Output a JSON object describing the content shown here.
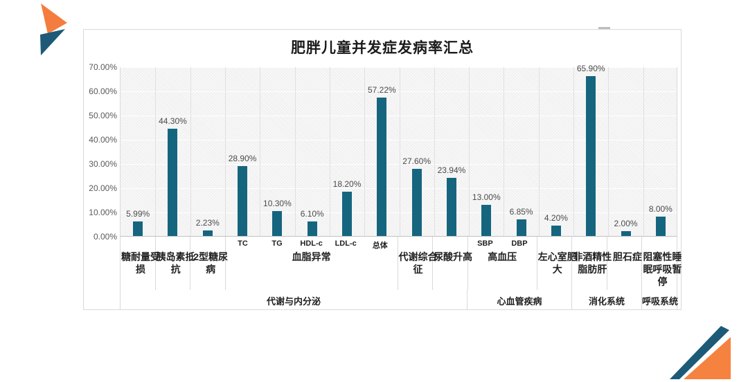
{
  "decorations": {
    "logo": {
      "orange": "#f57c3f",
      "teal": "#1d5a78"
    },
    "corner": {
      "orange": "#f5823f",
      "teal": "#1d5a78"
    },
    "frame_dash_color": "#bdbdbd"
  },
  "chart": {
    "bar_color": "#16657f",
    "frame_border": "#d9d9d9",
    "plot_bg": "#f3f3f3",
    "value_label_color": "#4b4b4b",
    "ytick_color": "#595959"
  },
  "chart_data": {
    "type": "bar",
    "title": "肥胖儿童并发症发病率汇总",
    "xlabel": "",
    "ylabel": "",
    "ylim": [
      0,
      70
    ],
    "grid": true,
    "legend": "none",
    "y_ticks": [
      "0.00%",
      "10.00%",
      "20.00%",
      "30.00%",
      "40.00%",
      "50.00%",
      "60.00%",
      "70.00%"
    ],
    "bars": [
      {
        "category": "糖耐量受损",
        "tick": "",
        "value": 5.99,
        "label": "5.99%"
      },
      {
        "category": "胰岛素抵抗",
        "tick": "",
        "value": 44.3,
        "label": "44.30%"
      },
      {
        "category": "2型糖尿病",
        "tick": "",
        "value": 2.23,
        "label": "2.23%"
      },
      {
        "category": "血脂异常",
        "tick": "TC",
        "value": 28.9,
        "label": "28.90%"
      },
      {
        "category": "血脂异常",
        "tick": "TG",
        "value": 10.3,
        "label": "10.30%"
      },
      {
        "category": "血脂异常",
        "tick": "HDL-c",
        "value": 6.1,
        "label": "6.10%"
      },
      {
        "category": "血脂异常",
        "tick": "LDL-c",
        "value": 18.2,
        "label": "18.20%"
      },
      {
        "category": "血脂异常",
        "tick": "总体",
        "value": 57.22,
        "label": "57.22%"
      },
      {
        "category": "代谢综合征",
        "tick": "",
        "value": 27.6,
        "label": "27.60%"
      },
      {
        "category": "尿酸升高",
        "tick": "",
        "value": 23.94,
        "label": "23.94%"
      },
      {
        "category": "高血压",
        "tick": "SBP",
        "value": 13.0,
        "label": "13.00%"
      },
      {
        "category": "高血压",
        "tick": "DBP",
        "value": 6.85,
        "label": "6.85%"
      },
      {
        "category": "左心室肥大",
        "tick": "",
        "value": 4.2,
        "label": "4.20%"
      },
      {
        "category": "非酒精性脂肪肝",
        "tick": "",
        "value": 65.9,
        "label": "65.90%"
      },
      {
        "category": "胆石症",
        "tick": "",
        "value": 2.0,
        "label": "2.00%"
      },
      {
        "category": "阻塞性睡眠呼吸暂停",
        "tick": "",
        "value": 8.0,
        "label": "8.00%"
      }
    ],
    "level2_cells": [
      {
        "label": "糖耐量受损",
        "span": 1
      },
      {
        "label": "胰岛素抵抗",
        "span": 1
      },
      {
        "label": "2型糖尿病",
        "span": 1
      },
      {
        "label": "血脂异常",
        "span": 5
      },
      {
        "label": "代谢综合征",
        "span": 1
      },
      {
        "label": "尿酸升高",
        "span": 1
      },
      {
        "label": "高血压",
        "span": 2
      },
      {
        "label": "左心室肥大",
        "span": 1
      },
      {
        "label": "非酒精性脂肪肝",
        "span": 1
      },
      {
        "label": "胆石症",
        "span": 1
      },
      {
        "label": "阻塞性睡眠呼吸暂停",
        "span": 1
      }
    ],
    "level3_cells": [
      {
        "label": "代谢与内分泌",
        "span": 10
      },
      {
        "label": "心血管疾病",
        "span": 3
      },
      {
        "label": "消化系统",
        "span": 2
      },
      {
        "label": "呼吸系统",
        "span": 1
      }
    ]
  }
}
